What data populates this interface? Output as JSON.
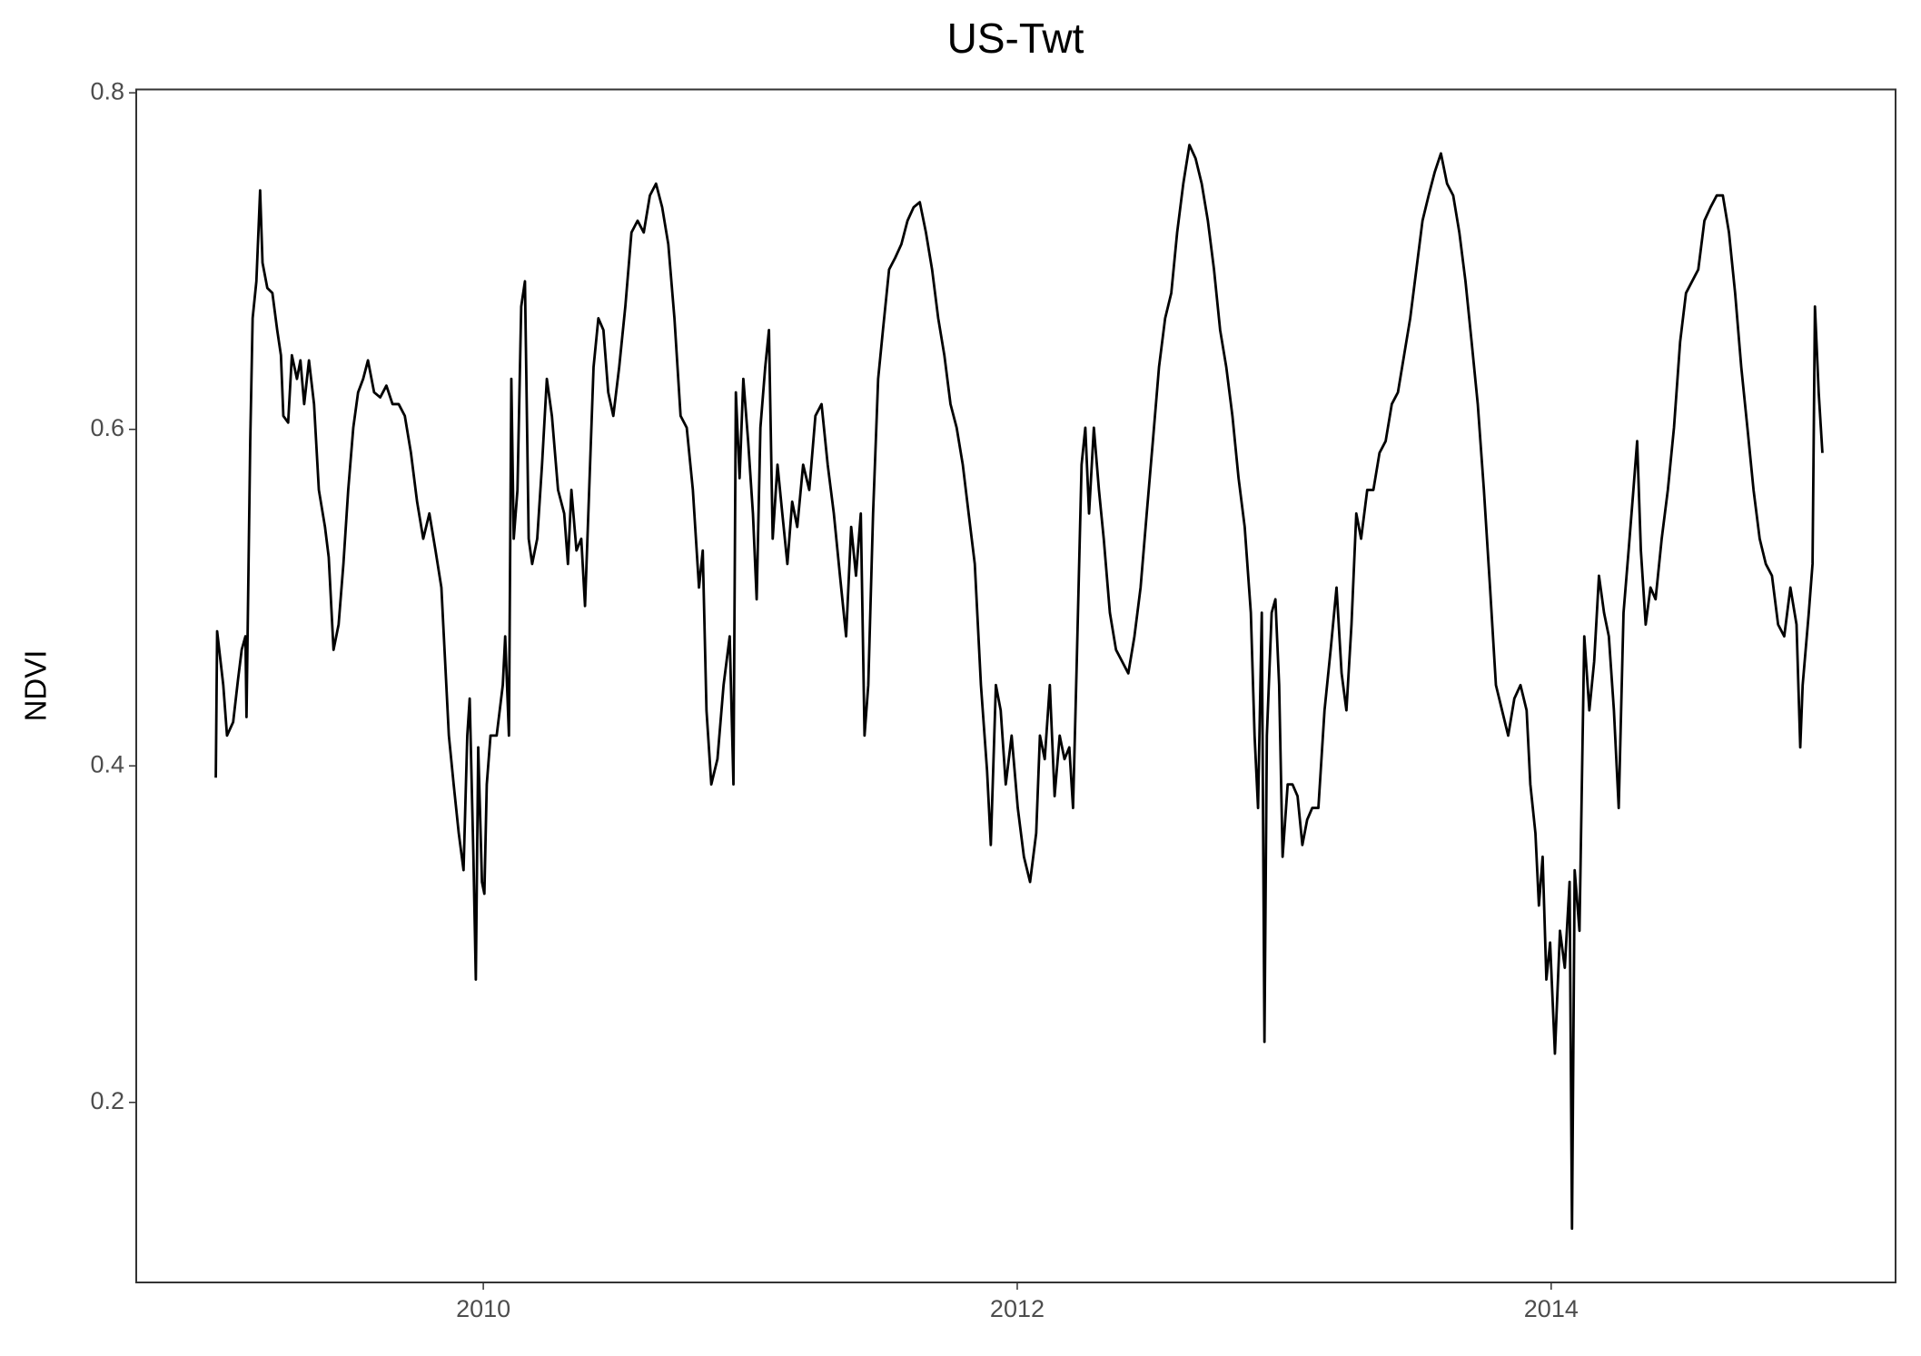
{
  "chart_data": {
    "type": "line",
    "title": "US-Twt",
    "y_label": "NDVI",
    "color": "#000000",
    "grid": false,
    "xlim": [
      2008.7,
      2015.29
    ],
    "xticks": [
      2010,
      2012,
      2014
    ],
    "ylim": [
      0.093,
      0.802
    ],
    "yticks": [
      0.2,
      0.4,
      0.6,
      0.8
    ],
    "x": [
      2008.998,
      2009.003,
      2009.026,
      2009.04,
      2009.063,
      2009.081,
      2009.095,
      2009.109,
      2009.113,
      2009.122,
      2009.127,
      2009.136,
      2009.15,
      2009.164,
      2009.173,
      2009.191,
      2009.21,
      2009.228,
      2009.242,
      2009.251,
      2009.269,
      2009.283,
      2009.302,
      2009.315,
      2009.329,
      2009.347,
      2009.366,
      2009.384,
      2009.407,
      2009.421,
      2009.439,
      2009.458,
      2009.476,
      2009.494,
      2009.513,
      2009.531,
      2009.55,
      2009.568,
      2009.591,
      2009.614,
      2009.637,
      2009.66,
      2009.683,
      2009.706,
      2009.729,
      2009.752,
      2009.775,
      2009.798,
      2009.821,
      2009.843,
      2009.857,
      2009.871,
      2009.889,
      2009.908,
      2009.926,
      2009.94,
      2009.949,
      2009.963,
      2009.972,
      2009.981,
      2009.995,
      2010.004,
      2010.013,
      2010.027,
      2010.05,
      2010.073,
      2010.082,
      2010.096,
      2010.105,
      2010.114,
      2010.128,
      2010.142,
      2010.156,
      2010.17,
      2010.183,
      2010.202,
      2010.22,
      2010.238,
      2010.257,
      2010.28,
      2010.303,
      2010.317,
      2010.33,
      2010.349,
      2010.367,
      2010.381,
      2010.395,
      2010.413,
      2010.431,
      2010.45,
      2010.468,
      2010.487,
      2010.509,
      2010.532,
      2010.555,
      2010.578,
      2010.601,
      2010.624,
      2010.647,
      2010.67,
      2010.693,
      2010.716,
      2010.739,
      2010.762,
      2010.785,
      2010.808,
      2010.822,
      2010.836,
      2010.854,
      2010.877,
      2010.9,
      2010.923,
      2010.937,
      2010.946,
      2010.96,
      2010.974,
      2010.992,
      2011.01,
      2011.024,
      2011.038,
      2011.056,
      2011.07,
      2011.084,
      2011.102,
      2011.12,
      2011.139,
      2011.157,
      2011.176,
      2011.198,
      2011.221,
      2011.244,
      2011.267,
      2011.29,
      2011.313,
      2011.336,
      2011.359,
      2011.378,
      2011.396,
      2011.414,
      2011.428,
      2011.442,
      2011.46,
      2011.479,
      2011.497,
      2011.52,
      2011.543,
      2011.566,
      2011.589,
      2011.612,
      2011.635,
      2011.658,
      2011.681,
      2011.704,
      2011.727,
      2011.75,
      2011.773,
      2011.796,
      2011.818,
      2011.841,
      2011.864,
      2011.887,
      2011.901,
      2011.92,
      2011.938,
      2011.957,
      2011.979,
      2012.002,
      2012.025,
      2012.048,
      2012.071,
      2012.085,
      2012.103,
      2012.122,
      2012.14,
      2012.159,
      2012.177,
      2012.195,
      2012.209,
      2012.223,
      2012.241,
      2012.255,
      2012.269,
      2012.287,
      2012.306,
      2012.324,
      2012.347,
      2012.37,
      2012.393,
      2012.416,
      2012.439,
      2012.462,
      2012.485,
      2012.508,
      2012.531,
      2012.554,
      2012.577,
      2012.599,
      2012.622,
      2012.645,
      2012.668,
      2012.691,
      2012.714,
      2012.737,
      2012.76,
      2012.783,
      2012.806,
      2012.829,
      2012.852,
      2012.875,
      2012.889,
      2012.902,
      2012.916,
      2012.926,
      2012.935,
      2012.953,
      2012.967,
      2012.981,
      2012.994,
      2013.013,
      2013.031,
      2013.05,
      2013.068,
      2013.086,
      2013.105,
      2013.128,
      2013.151,
      2013.174,
      2013.196,
      2013.215,
      2013.233,
      2013.252,
      2013.27,
      2013.288,
      2013.311,
      2013.334,
      2013.357,
      2013.38,
      2013.403,
      2013.426,
      2013.449,
      2013.472,
      2013.495,
      2013.518,
      2013.541,
      2013.564,
      2013.587,
      2013.61,
      2013.633,
      2013.656,
      2013.679,
      2013.702,
      2013.725,
      2013.748,
      2013.771,
      2013.793,
      2013.816,
      2013.839,
      2013.862,
      2013.885,
      2013.908,
      2013.922,
      2013.941,
      2013.954,
      2013.968,
      2013.982,
      2013.996,
      2014.014,
      2014.033,
      2014.051,
      2014.069,
      2014.078,
      2014.088,
      2014.106,
      2014.124,
      2014.143,
      2014.161,
      2014.179,
      2014.198,
      2014.216,
      2014.235,
      2014.253,
      2014.271,
      2014.29,
      2014.308,
      2014.322,
      2014.336,
      2014.354,
      2014.372,
      2014.391,
      2014.414,
      2014.437,
      2014.46,
      2014.483,
      2014.505,
      2014.528,
      2014.551,
      2014.574,
      2014.597,
      2014.62,
      2014.643,
      2014.666,
      2014.689,
      2014.712,
      2014.735,
      2014.758,
      2014.781,
      2014.804,
      2014.827,
      2014.85,
      2014.873,
      2014.896,
      2014.919,
      2014.933,
      2014.942,
      2014.965,
      2014.979,
      2014.988,
      2015.002,
      2015.016
    ],
    "values": [
      0.393,
      0.48,
      0.448,
      0.418,
      0.426,
      0.451,
      0.469,
      0.477,
      0.429,
      0.535,
      0.593,
      0.666,
      0.688,
      0.742,
      0.699,
      0.684,
      0.681,
      0.659,
      0.644,
      0.608,
      0.604,
      0.644,
      0.63,
      0.641,
      0.615,
      0.641,
      0.615,
      0.564,
      0.542,
      0.524,
      0.469,
      0.484,
      0.52,
      0.564,
      0.601,
      0.622,
      0.63,
      0.641,
      0.622,
      0.619,
      0.626,
      0.615,
      0.615,
      0.608,
      0.586,
      0.557,
      0.535,
      0.55,
      0.528,
      0.506,
      0.462,
      0.418,
      0.389,
      0.36,
      0.338,
      0.418,
      0.44,
      0.346,
      0.273,
      0.411,
      0.331,
      0.324,
      0.389,
      0.418,
      0.418,
      0.448,
      0.477,
      0.418,
      0.63,
      0.535,
      0.564,
      0.673,
      0.688,
      0.535,
      0.52,
      0.535,
      0.579,
      0.63,
      0.608,
      0.564,
      0.55,
      0.52,
      0.564,
      0.528,
      0.535,
      0.495,
      0.557,
      0.637,
      0.666,
      0.659,
      0.622,
      0.608,
      0.637,
      0.673,
      0.717,
      0.724,
      0.717,
      0.739,
      0.746,
      0.732,
      0.71,
      0.666,
      0.608,
      0.601,
      0.564,
      0.506,
      0.528,
      0.433,
      0.389,
      0.404,
      0.448,
      0.477,
      0.389,
      0.622,
      0.571,
      0.63,
      0.593,
      0.55,
      0.499,
      0.601,
      0.637,
      0.659,
      0.535,
      0.579,
      0.55,
      0.52,
      0.557,
      0.542,
      0.579,
      0.564,
      0.608,
      0.615,
      0.579,
      0.55,
      0.513,
      0.477,
      0.542,
      0.513,
      0.55,
      0.418,
      0.448,
      0.55,
      0.63,
      0.659,
      0.695,
      0.702,
      0.71,
      0.724,
      0.732,
      0.735,
      0.717,
      0.695,
      0.666,
      0.644,
      0.615,
      0.601,
      0.579,
      0.55,
      0.52,
      0.448,
      0.397,
      0.353,
      0.448,
      0.433,
      0.389,
      0.418,
      0.375,
      0.346,
      0.331,
      0.36,
      0.418,
      0.404,
      0.448,
      0.382,
      0.418,
      0.404,
      0.411,
      0.375,
      0.462,
      0.579,
      0.601,
      0.55,
      0.601,
      0.564,
      0.535,
      0.491,
      0.469,
      0.462,
      0.455,
      0.477,
      0.506,
      0.55,
      0.593,
      0.637,
      0.666,
      0.681,
      0.717,
      0.746,
      0.769,
      0.761,
      0.746,
      0.724,
      0.695,
      0.659,
      0.637,
      0.608,
      0.571,
      0.542,
      0.491,
      0.418,
      0.375,
      0.491,
      0.236,
      0.418,
      0.491,
      0.499,
      0.448,
      0.346,
      0.389,
      0.389,
      0.382,
      0.353,
      0.368,
      0.375,
      0.375,
      0.433,
      0.469,
      0.506,
      0.455,
      0.433,
      0.484,
      0.55,
      0.535,
      0.564,
      0.564,
      0.586,
      0.593,
      0.615,
      0.622,
      0.644,
      0.666,
      0.695,
      0.724,
      0.739,
      0.753,
      0.764,
      0.746,
      0.739,
      0.717,
      0.688,
      0.652,
      0.615,
      0.564,
      0.506,
      0.448,
      0.433,
      0.418,
      0.44,
      0.448,
      0.433,
      0.389,
      0.36,
      0.317,
      0.346,
      0.273,
      0.295,
      0.229,
      0.302,
      0.28,
      0.331,
      0.125,
      0.338,
      0.302,
      0.477,
      0.433,
      0.462,
      0.513,
      0.491,
      0.477,
      0.433,
      0.375,
      0.491,
      0.528,
      0.564,
      0.593,
      0.528,
      0.484,
      0.506,
      0.499,
      0.535,
      0.564,
      0.601,
      0.652,
      0.681,
      0.688,
      0.695,
      0.724,
      0.732,
      0.739,
      0.739,
      0.717,
      0.681,
      0.637,
      0.601,
      0.564,
      0.535,
      0.52,
      0.513,
      0.484,
      0.477,
      0.506,
      0.484,
      0.411,
      0.448,
      0.491,
      0.52,
      0.673,
      0.622,
      0.586
    ]
  }
}
